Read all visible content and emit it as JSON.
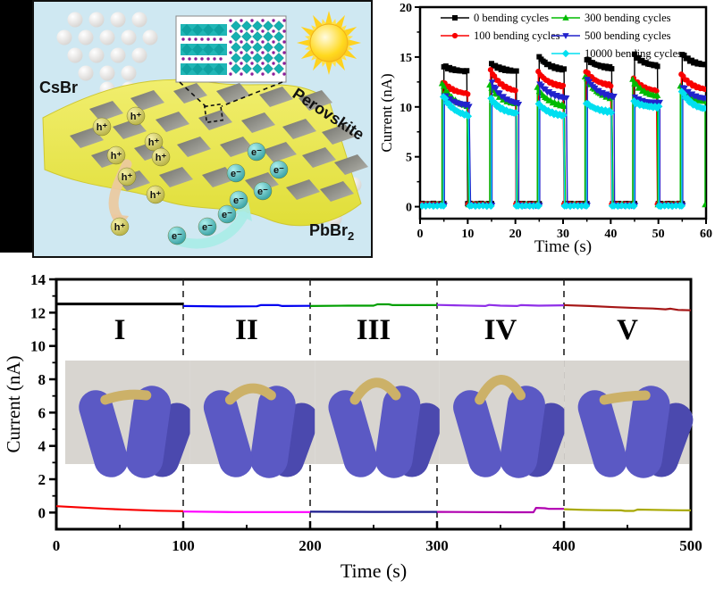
{
  "schematic": {
    "panel_bg": "#cfe8f2",
    "labels": {
      "csbr": "CsBr",
      "perovskite": "Perovskite",
      "pbbr": "PbBr",
      "pbbr_sub": "2",
      "hole": "h⁺",
      "electron": "e⁻"
    },
    "colors": {
      "film": "#e9e64f",
      "electrode": "#8f8f85",
      "white_sphere": "#f2f0ee",
      "hole_sphere": "#d6cf56",
      "electron_sphere": "#3bb7b7",
      "sun_core": "#ffe24a",
      "sun_ray": "#ffd21e"
    }
  },
  "chart_data": [
    {
      "type": "line",
      "title": "",
      "xlabel": "Time (s)",
      "ylabel": "Current (nA)",
      "xlim": [
        0,
        60
      ],
      "ylim": [
        0,
        20
      ],
      "xticks": [
        0,
        10,
        20,
        30,
        40,
        50,
        60
      ],
      "yticks": [
        0,
        5,
        10,
        15,
        20
      ],
      "grid": false,
      "legend_position": "top-inside",
      "series": [
        {
          "name": "0 bending cycles",
          "color": "#000000",
          "marker": "square",
          "baseline": 0.3,
          "pulses": [
            [
              5,
              10,
              14.1,
              13.5
            ],
            [
              15,
              20.3,
              14.3,
              13.5
            ],
            [
              25,
              30.4,
              15.0,
              13.6
            ],
            [
              35,
              40.4,
              14.8,
              13.8
            ],
            [
              45,
              50,
              15.2,
              14.0
            ],
            [
              55,
              60,
              15.3,
              14.1
            ]
          ]
        },
        {
          "name": "100 bending cycles",
          "color": "#f80000",
          "marker": "circle",
          "baseline": 0.25,
          "pulses": [
            [
              4.8,
              10.1,
              12.5,
              11.2
            ],
            [
              14.8,
              20.1,
              13.7,
              11.4
            ],
            [
              24.8,
              30.2,
              13.5,
              11.9
            ],
            [
              34.8,
              40.2,
              13.6,
              12.0
            ],
            [
              44.8,
              49.8,
              12.8,
              11.5
            ],
            [
              54.8,
              60,
              13.3,
              11.6
            ]
          ]
        },
        {
          "name": "300 bending cycles",
          "color": "#00bb00",
          "marker": "triangle-up",
          "baseline": 0.2,
          "pulses": [
            [
              4.6,
              10.2,
              12.4,
              9.8
            ],
            [
              14.6,
              20.4,
              12.2,
              10.1
            ],
            [
              24.6,
              30.5,
              11.9,
              9.9
            ],
            [
              34.6,
              40.5,
              13.1,
              10.6
            ],
            [
              44.6,
              49.9,
              12.7,
              10.9
            ],
            [
              54.6,
              59.8,
              12.1,
              10.4
            ]
          ]
        },
        {
          "name": "500 bending cycles",
          "color": "#2222cc",
          "marker": "triangle-down",
          "baseline": 0.12,
          "pulses": [
            [
              5.1,
              10.6,
              11.2,
              10.0
            ],
            [
              15.1,
              20.7,
              12.4,
              10.1
            ],
            [
              25.1,
              30.9,
              12.3,
              10.7
            ],
            [
              35.1,
              40.8,
              12.8,
              10.8
            ],
            [
              45.1,
              50.3,
              10.9,
              10.3
            ],
            [
              55.1,
              60,
              12.0,
              10.7
            ]
          ]
        },
        {
          "name": "10000 bending cycles",
          "color": "#00dff0",
          "marker": "diamond",
          "baseline": 0.08,
          "pulses": [
            [
              4.9,
              10.4,
              11.1,
              8.9
            ],
            [
              14.9,
              20.2,
              10.8,
              9.2
            ],
            [
              24.9,
              30.3,
              10.3,
              9.0
            ],
            [
              34.9,
              40.3,
              10.4,
              9.4
            ],
            [
              44.9,
              50.1,
              10.5,
              9.9
            ],
            [
              54.9,
              60,
              11.6,
              9.6
            ]
          ]
        }
      ]
    },
    {
      "type": "line",
      "title": "",
      "xlabel": "Time (s)",
      "ylabel": "Current (nA)",
      "xlim": [
        0,
        500
      ],
      "ylim": [
        -1,
        14
      ],
      "xticks": [
        0,
        100,
        200,
        300,
        400,
        500
      ],
      "yticks": [
        0,
        2,
        4,
        6,
        8,
        10,
        12,
        14
      ],
      "grid": false,
      "dividers": [
        100,
        200,
        300,
        400
      ],
      "segments": [
        {
          "label": "I",
          "t": [
            0,
            100
          ],
          "light": {
            "color": "#000000",
            "width": 3,
            "points": [
              [
                0,
                12.52
              ],
              [
                100,
                12.52
              ]
            ]
          },
          "dark": {
            "color": "#f80000",
            "width": 2.2,
            "points": [
              [
                0,
                0.38
              ],
              [
                20,
                0.3
              ],
              [
                40,
                0.22
              ],
              [
                60,
                0.16
              ],
              [
                80,
                0.11
              ],
              [
                100,
                0.08
              ]
            ]
          }
        },
        {
          "label": "II",
          "t": [
            100,
            200
          ],
          "light": {
            "color": "#0000f0",
            "width": 2.2,
            "points": [
              [
                100,
                12.4
              ],
              [
                130,
                12.37
              ],
              [
                158,
                12.38
              ],
              [
                161,
                12.45
              ],
              [
                175,
                12.45
              ],
              [
                178,
                12.4
              ],
              [
                200,
                12.41
              ]
            ]
          },
          "dark": {
            "color": "#ff00ff",
            "width": 2.2,
            "points": [
              [
                100,
                0.06
              ],
              [
                140,
                0.03
              ],
              [
                200,
                0.03
              ]
            ]
          }
        },
        {
          "label": "III",
          "t": [
            200,
            300
          ],
          "light": {
            "color": "#009f00",
            "width": 2.2,
            "points": [
              [
                200,
                12.4
              ],
              [
                230,
                12.42
              ],
              [
                250,
                12.42
              ],
              [
                253,
                12.5
              ],
              [
                262,
                12.5
              ],
              [
                265,
                12.45
              ],
              [
                300,
                12.45
              ]
            ]
          },
          "dark": {
            "color": "#1b1b8f",
            "width": 2.2,
            "points": [
              [
                200,
                0.05
              ],
              [
                250,
                0.04
              ],
              [
                300,
                0.04
              ]
            ]
          }
        },
        {
          "label": "IV",
          "t": [
            300,
            400
          ],
          "light": {
            "color": "#8f2fe8",
            "width": 2.2,
            "points": [
              [
                300,
                12.46
              ],
              [
                320,
                12.43
              ],
              [
                338,
                12.4
              ],
              [
                341,
                12.46
              ],
              [
                350,
                12.42
              ],
              [
                363,
                12.4
              ],
              [
                366,
                12.45
              ],
              [
                380,
                12.42
              ],
              [
                400,
                12.44
              ]
            ]
          },
          "dark": {
            "color": "#b000b0",
            "width": 2.2,
            "points": [
              [
                300,
                0.04
              ],
              [
                330,
                0.03
              ],
              [
                360,
                0.02
              ],
              [
                376,
                0.02
              ],
              [
                378,
                0.28
              ],
              [
                385,
                0.26
              ],
              [
                388,
                0.22
              ],
              [
                400,
                0.22
              ]
            ]
          }
        },
        {
          "label": "V",
          "t": [
            400,
            500
          ],
          "light": {
            "color": "#a51515",
            "width": 2.2,
            "points": [
              [
                400,
                12.45
              ],
              [
                420,
                12.4
              ],
              [
                440,
                12.33
              ],
              [
                460,
                12.27
              ],
              [
                470,
                12.25
              ],
              [
                480,
                12.2
              ],
              [
                484,
                12.24
              ],
              [
                490,
                12.16
              ],
              [
                500,
                12.14
              ]
            ]
          },
          "dark": {
            "color": "#a8a800",
            "width": 2.2,
            "points": [
              [
                400,
                0.2
              ],
              [
                415,
                0.16
              ],
              [
                430,
                0.14
              ],
              [
                445,
                0.13
              ],
              [
                448,
                0.1
              ],
              [
                455,
                0.1
              ],
              [
                458,
                0.18
              ],
              [
                470,
                0.16
              ],
              [
                485,
                0.14
              ],
              [
                500,
                0.13
              ]
            ]
          }
        }
      ],
      "photos": {
        "count": 5,
        "bends": [
          0.18,
          0.5,
          0.78,
          0.92,
          0.1
        ]
      }
    }
  ]
}
